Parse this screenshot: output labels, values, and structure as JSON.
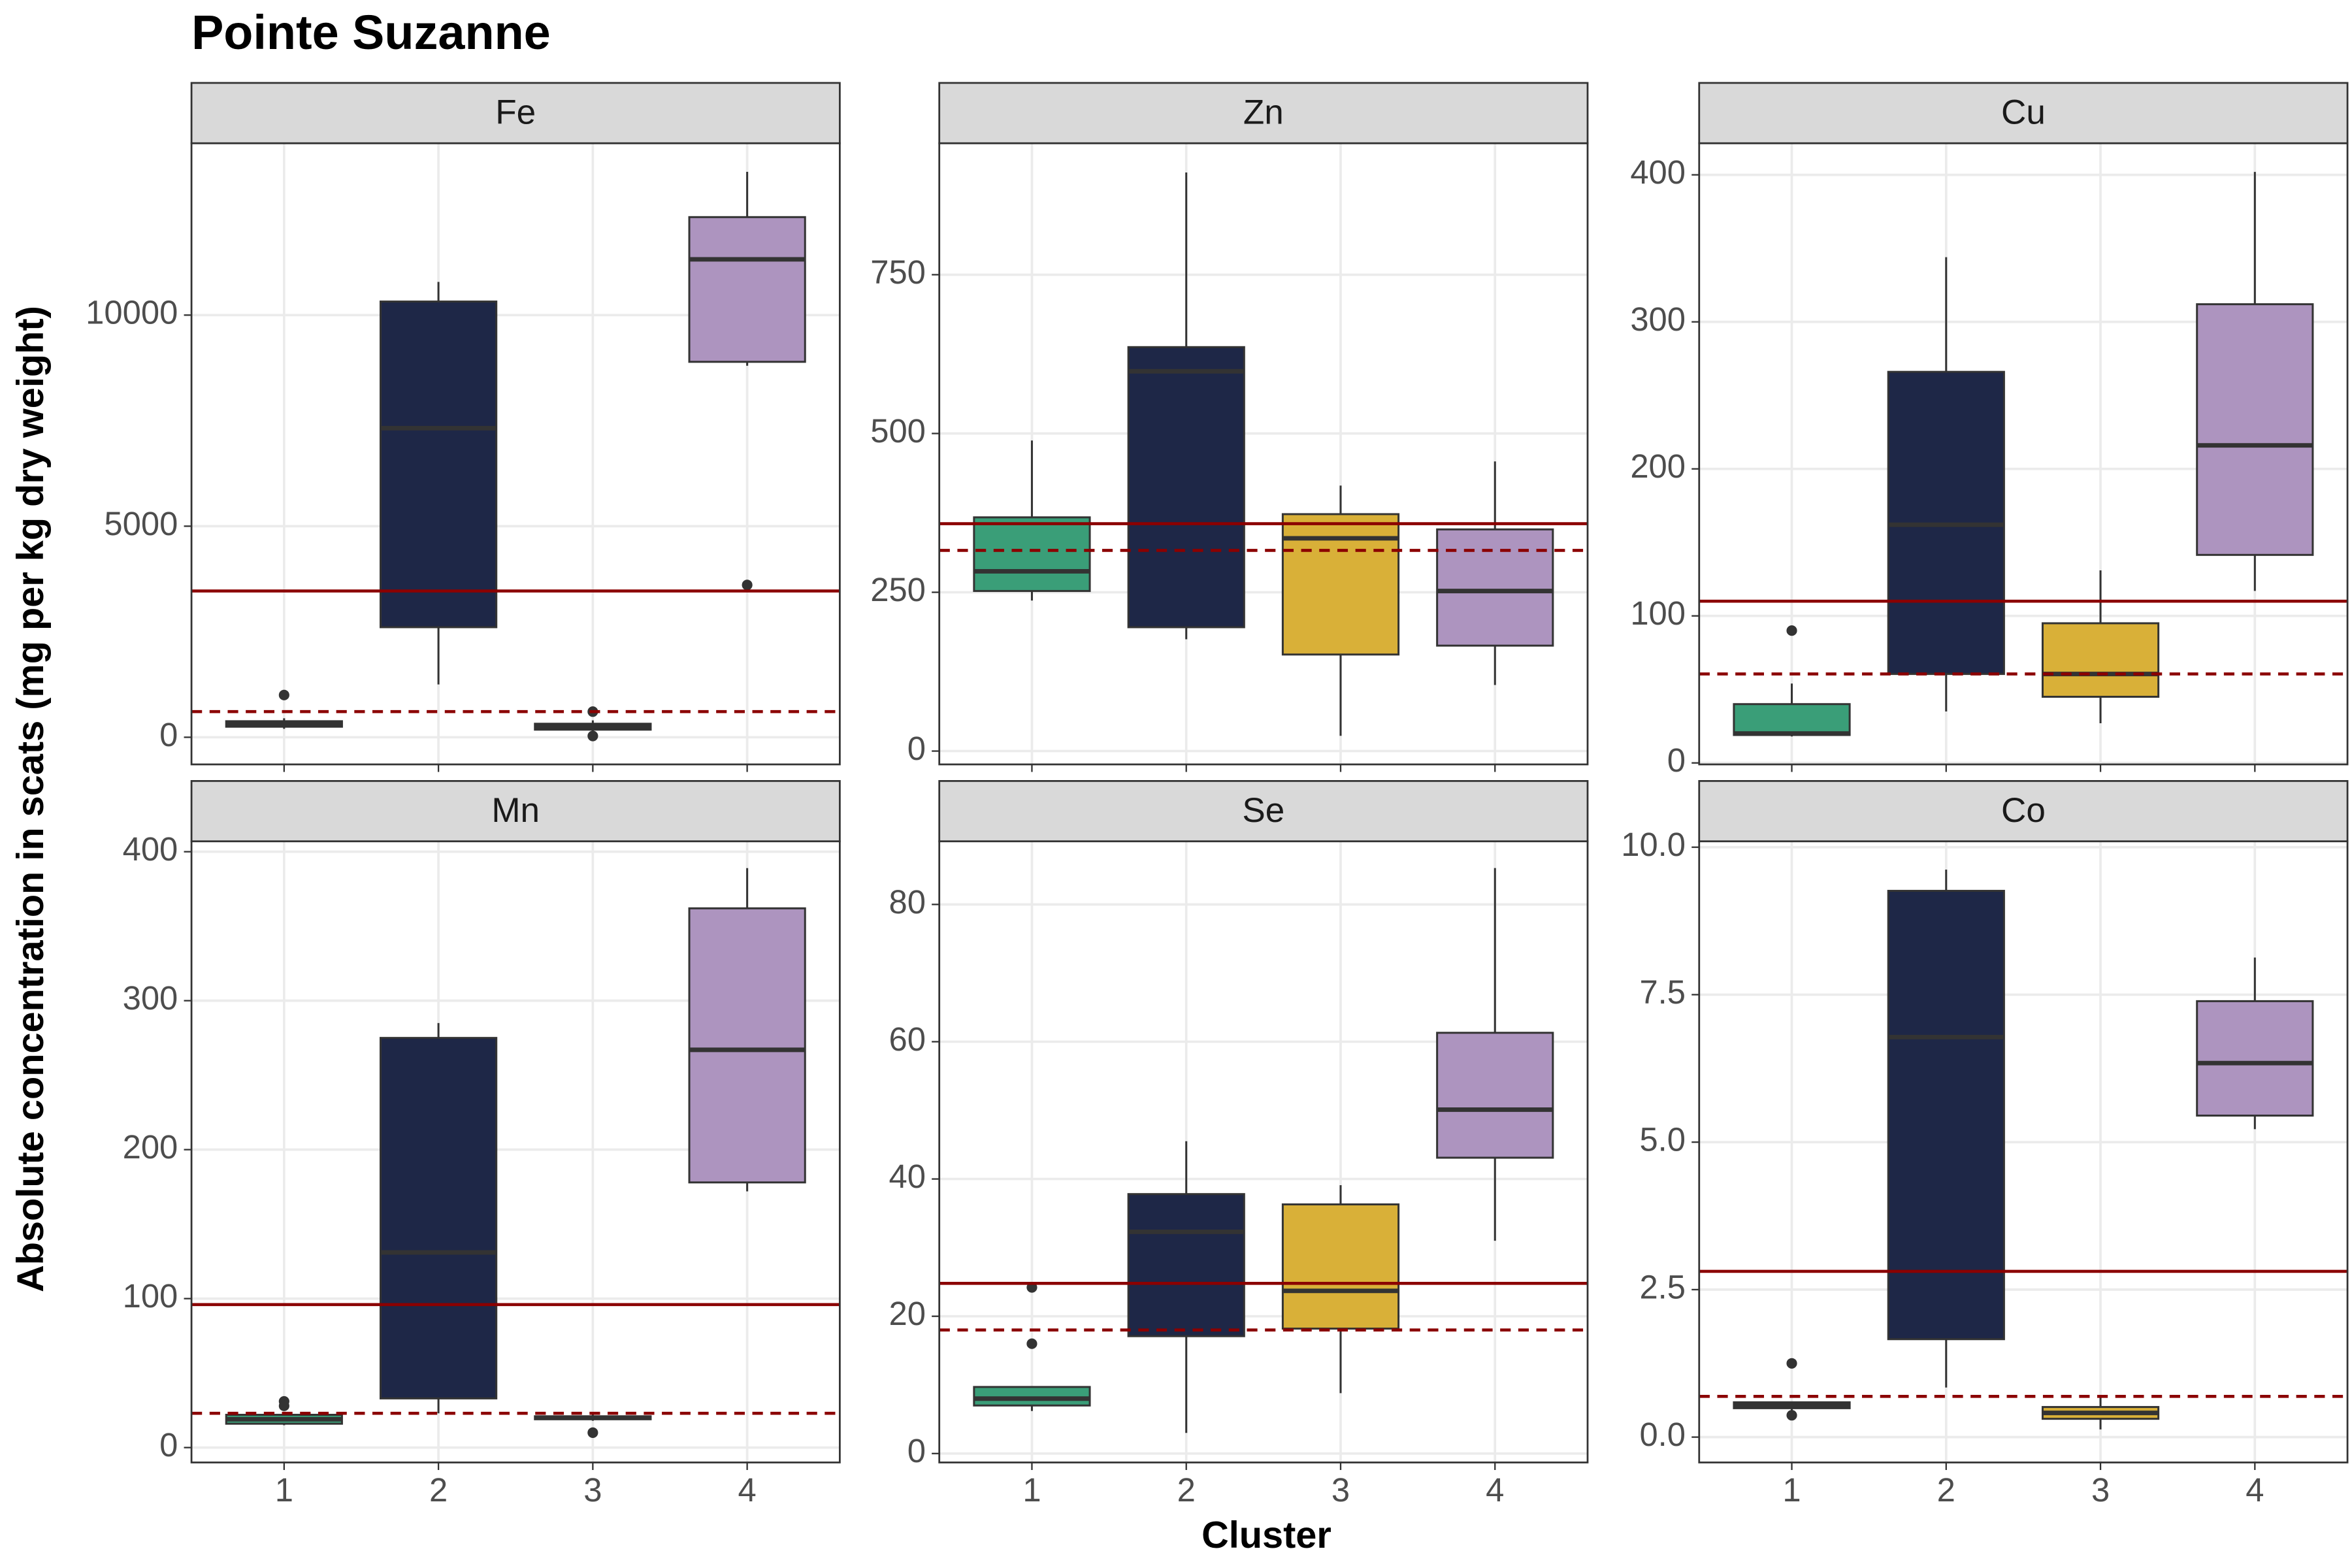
{
  "title": "Pointe Suzanne",
  "x_label": "Cluster",
  "y_label": "Absolute concentration in scats (mg per kg dry weight)",
  "x_categories": [
    "1",
    "2",
    "3",
    "4"
  ],
  "colors": [
    "#3a9e78",
    "#1e2747",
    "#d9b038",
    "#ad94bf"
  ],
  "chart_data": [
    {
      "type": "boxplot",
      "title": "Fe",
      "ylim": [
        -643,
        14071
      ],
      "yticks": [
        0,
        5000,
        10000
      ],
      "grid": true,
      "boxes": [
        {
          "min": 200,
          "q1": 250,
          "median": 320,
          "q3": 380,
          "max": 450,
          "outliers": [
            1000
          ]
        },
        {
          "min": 1250,
          "q1": 2607,
          "median": 7321,
          "q3": 10321,
          "max": 10786,
          "outliers": []
        },
        {
          "min": 150,
          "q1": 180,
          "median": 250,
          "q3": 320,
          "max": 400,
          "outliers": [
            607,
            30
          ]
        },
        {
          "min": 8800,
          "q1": 8893,
          "median": 11321,
          "q3": 12321,
          "max": 13393,
          "outliers": [
            3607
          ]
        }
      ],
      "reference_lines": [
        {
          "value": 3464,
          "style": "solid",
          "color": "#8b0000"
        },
        {
          "value": 607,
          "style": "dashed",
          "color": "#8b0000"
        }
      ]
    },
    {
      "type": "boxplot",
      "title": "Zn",
      "ylim": [
        -21,
        957
      ],
      "yticks": [
        0,
        250,
        500,
        750
      ],
      "grid": true,
      "boxes": [
        {
          "min": 237,
          "q1": 252,
          "median": 283,
          "q3": 368,
          "max": 489,
          "outliers": []
        },
        {
          "min": 176,
          "q1": 195,
          "median": 598,
          "q3": 636,
          "max": 911,
          "outliers": []
        },
        {
          "min": 24,
          "q1": 152,
          "median": 335,
          "q3": 373,
          "max": 418,
          "outliers": []
        },
        {
          "min": 104,
          "q1": 166,
          "median": 252,
          "q3": 349,
          "max": 456,
          "outliers": []
        }
      ],
      "reference_lines": [
        {
          "value": 358,
          "style": "solid",
          "color": "#8b0000"
        },
        {
          "value": 316,
          "style": "dashed",
          "color": "#8b0000"
        }
      ]
    },
    {
      "type": "boxplot",
      "title": "Cu",
      "ylim": [
        -1,
        421.5
      ],
      "yticks": [
        0,
        100,
        200,
        300,
        400
      ],
      "grid": true,
      "boxes": [
        {
          "min": 18,
          "q1": 19,
          "median": 20,
          "q3": 40,
          "max": 54,
          "outliers": [
            90
          ]
        },
        {
          "min": 35,
          "q1": 60.5,
          "median": 162,
          "q3": 266,
          "max": 344,
          "outliers": []
        },
        {
          "min": 27,
          "q1": 45,
          "median": 60.5,
          "q3": 95,
          "max": 131,
          "outliers": []
        },
        {
          "min": 117,
          "q1": 141.5,
          "median": 216,
          "q3": 312,
          "max": 402,
          "outliers": []
        }
      ],
      "reference_lines": [
        {
          "value": 110,
          "style": "solid",
          "color": "#8b0000"
        },
        {
          "value": 60.5,
          "style": "dashed",
          "color": "#8b0000"
        }
      ]
    },
    {
      "type": "boxplot",
      "title": "Mn",
      "ylim": [
        -10,
        407
      ],
      "yticks": [
        0,
        100,
        200,
        300,
        400
      ],
      "grid": true,
      "boxes": [
        {
          "min": 15,
          "q1": 16,
          "median": 19,
          "q3": 22,
          "max": 23,
          "outliers": [
            31,
            28
          ]
        },
        {
          "min": 23,
          "q1": 33,
          "median": 131,
          "q3": 275,
          "max": 285,
          "outliers": []
        },
        {
          "min": 18,
          "q1": 19,
          "median": 20,
          "q3": 21,
          "max": 22,
          "outliers": [
            10
          ]
        },
        {
          "min": 172,
          "q1": 178,
          "median": 267,
          "q3": 362,
          "max": 389,
          "outliers": []
        }
      ],
      "reference_lines": [
        {
          "value": 96,
          "style": "solid",
          "color": "#8b0000"
        },
        {
          "value": 23,
          "style": "dashed",
          "color": "#8b0000"
        }
      ]
    },
    {
      "type": "boxplot",
      "title": "Se",
      "ylim": [
        -1.3,
        89.2
      ],
      "yticks": [
        0,
        20,
        40,
        60,
        80
      ],
      "grid": true,
      "boxes": [
        {
          "min": 6.2,
          "q1": 7,
          "median": 8,
          "q3": 9.7,
          "max": 9.7,
          "outliers": [
            24.2,
            16
          ]
        },
        {
          "min": 3,
          "q1": 17.1,
          "median": 32.3,
          "q3": 37.8,
          "max": 45.5,
          "outliers": []
        },
        {
          "min": 8.8,
          "q1": 18.2,
          "median": 23.7,
          "q3": 36.3,
          "max": 39.1,
          "outliers": []
        },
        {
          "min": 31,
          "q1": 43.1,
          "median": 50.1,
          "q3": 61.3,
          "max": 85.3,
          "outliers": []
        }
      ],
      "reference_lines": [
        {
          "value": 24.8,
          "style": "solid",
          "color": "#8b0000"
        },
        {
          "value": 18,
          "style": "dashed",
          "color": "#8b0000"
        }
      ]
    },
    {
      "type": "boxplot",
      "title": "Co",
      "ylim": [
        -0.43,
        10.1
      ],
      "yticks": [
        {
          "value": 0,
          "label": "0.0"
        },
        2.5,
        {
          "value": 5,
          "label": "5.0"
        },
        7.5,
        {
          "value": 10,
          "label": "10.0"
        }
      ],
      "grid": true,
      "boxes": [
        {
          "min": 0.45,
          "q1": 0.49,
          "median": 0.54,
          "q3": 0.59,
          "max": 0.6,
          "outliers": [
            1.25,
            0.37
          ]
        },
        {
          "min": 0.84,
          "q1": 1.66,
          "median": 6.78,
          "q3": 9.26,
          "max": 9.62,
          "outliers": []
        },
        {
          "min": 0.13,
          "q1": 0.31,
          "median": 0.41,
          "q3": 0.51,
          "max": 0.69,
          "outliers": []
        },
        {
          "min": 5.22,
          "q1": 5.45,
          "median": 6.34,
          "q3": 7.39,
          "max": 8.13,
          "outliers": []
        }
      ],
      "reference_lines": [
        {
          "value": 2.81,
          "style": "solid",
          "color": "#8b0000"
        },
        {
          "value": 0.69,
          "style": "dashed",
          "color": "#8b0000"
        }
      ]
    }
  ]
}
